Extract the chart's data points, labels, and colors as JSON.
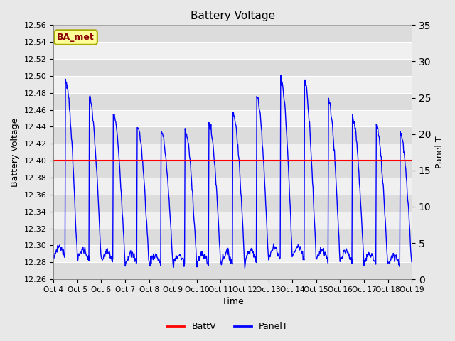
{
  "title": "Battery Voltage",
  "ylabel_left": "Battery Voltage",
  "ylabel_right": "Panel T",
  "xlabel": "Time",
  "ylim_left": [
    12.26,
    12.54
  ],
  "ylim_right": [
    0,
    35
  ],
  "battv_value": 12.4,
  "battv_color": "red",
  "panelt_color": "blue",
  "bg_color": "#e8e8e8",
  "band_light": "#f0f0f0",
  "band_dark": "#dcdcdc",
  "x_ticks": [
    "Oct 4",
    "Oct 5",
    "Oct 6",
    "Oct 7",
    "Oct 8",
    "Oct 9",
    "Oct 10",
    "Oct 11",
    "Oct 12",
    "Oct 13",
    "Oct 14",
    "Oct 15",
    "Oct 16",
    "Oct 17",
    "Oct 18",
    "Oct 19"
  ],
  "annotation_text": "BA_met",
  "annotation_bg": "#ffff99",
  "annotation_border": "#aaaa00",
  "annotation_text_color": "#8B0000",
  "legend_labels": [
    "BattV",
    "PanelT"
  ],
  "n_days": 15,
  "samples_per_day": 48
}
